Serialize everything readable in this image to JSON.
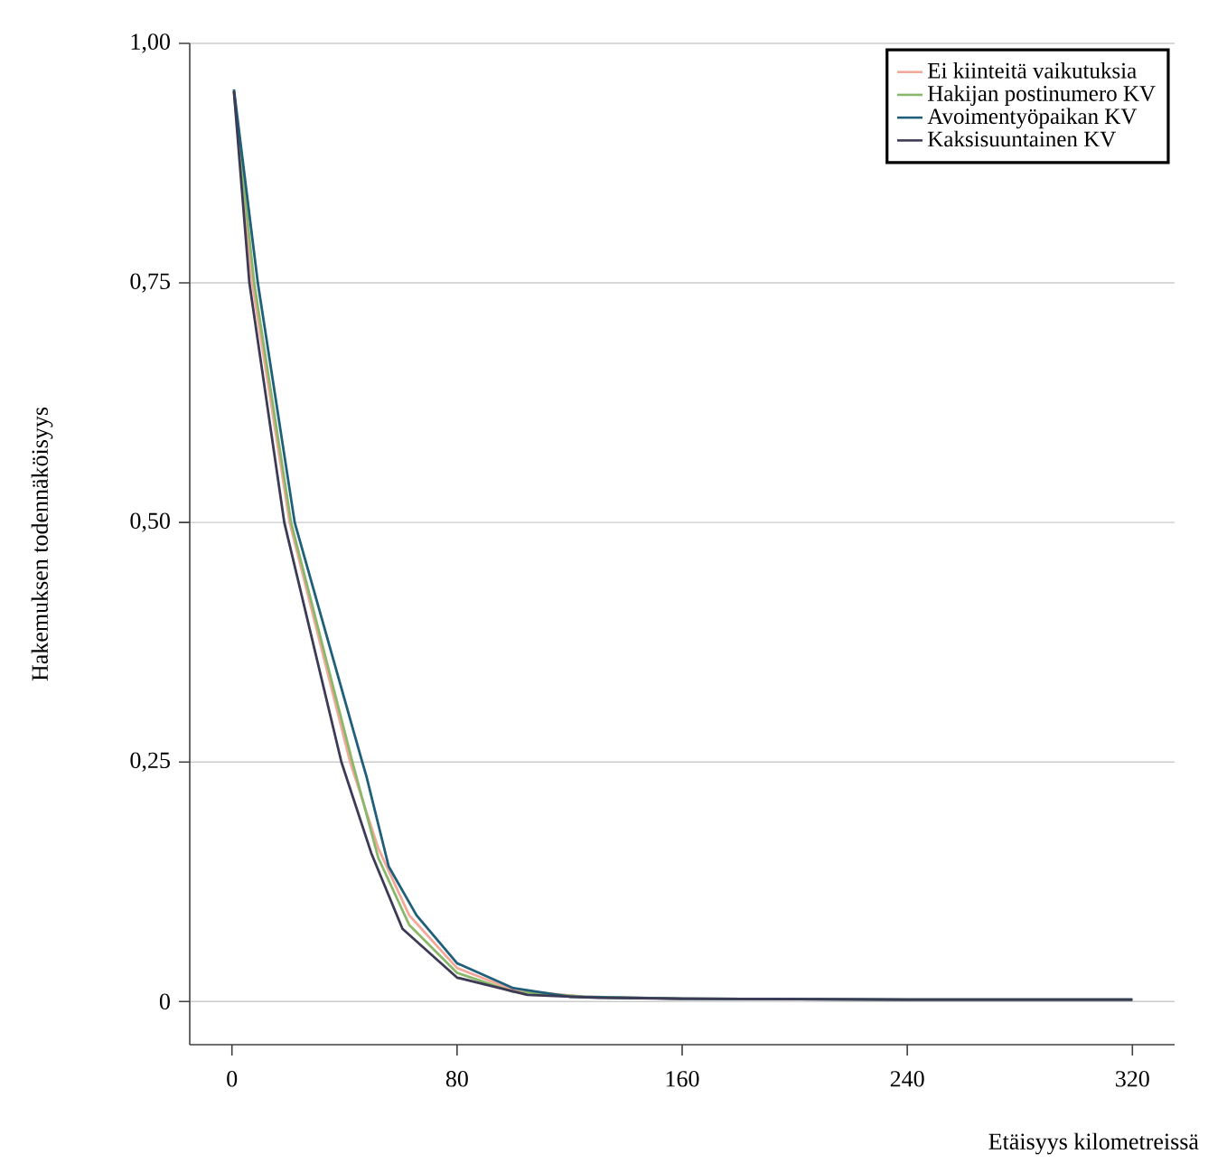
{
  "chart_data": {
    "type": "line",
    "xlabel": "Etäisyys kilometreissä",
    "ylabel": "Hakemuksen todennäköisyys",
    "xlim": [
      -15,
      335
    ],
    "ylim": [
      -0.045,
      1.0
    ],
    "xticks": [
      0,
      80,
      160,
      240,
      320
    ],
    "yticks": [
      {
        "value": 0,
        "label": "0"
      },
      {
        "value": 0.25,
        "label": "0,25"
      },
      {
        "value": 0.5,
        "label": "0,50"
      },
      {
        "value": 0.75,
        "label": "0,75"
      },
      {
        "value": 1.0,
        "label": "1,00"
      }
    ],
    "grid": "y",
    "legend": "top right",
    "series": [
      {
        "name": "Ei kiinteitä vaikutuksia",
        "color": "#f4a89a",
        "x": [
          0.7,
          7.2,
          20.5,
          42,
          52,
          63,
          80,
          100,
          125,
          160
        ],
        "values": [
          0.95,
          0.75,
          0.5,
          0.25,
          0.16,
          0.09,
          0.035,
          0.012,
          0.005,
          0.003
        ]
      },
      {
        "name": "Hakijan postinumero KV",
        "color": "#8ab86a",
        "x": [
          0.7,
          7.9,
          21,
          42.8,
          52,
          63,
          80,
          100,
          125,
          160,
          240,
          320
        ],
        "values": [
          0.95,
          0.75,
          0.5,
          0.25,
          0.15,
          0.08,
          0.03,
          0.01,
          0.005,
          0.003,
          0.002,
          0.002
        ]
      },
      {
        "name": "Avoimentyöpaikan KV",
        "color": "#1f5f7a",
        "x": [
          0.7,
          9.2,
          22.3,
          46.3,
          47.8,
          55.7,
          65.6,
          80,
          100,
          120,
          160,
          240,
          320
        ],
        "values": [
          0.952,
          0.75,
          0.5,
          0.25,
          0.235,
          0.141,
          0.09,
          0.04,
          0.014,
          0.005,
          0.003,
          0.002,
          0.002
        ]
      },
      {
        "name": "Kaksisuuntainen KV",
        "color": "#3d3a55",
        "x": [
          0.7,
          6.2,
          18.6,
          38.9,
          49.5,
          60.6,
          80,
          105,
          130,
          160,
          240,
          320
        ],
        "values": [
          0.95,
          0.75,
          0.5,
          0.25,
          0.155,
          0.076,
          0.025,
          0.007,
          0.004,
          0.003,
          0.002,
          0.002
        ]
      }
    ]
  }
}
